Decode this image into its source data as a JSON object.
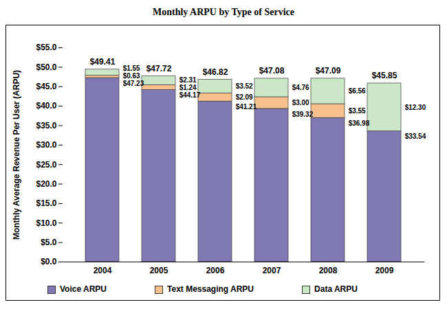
{
  "chart_data": {
    "type": "bar",
    "title": "Monthly ARPU by Type of Service",
    "y_label": "Monthly Average Revenue Per User (ARPU)",
    "categories": [
      "2004",
      "2005",
      "2006",
      "2007",
      "2008",
      "2009"
    ],
    "series": [
      {
        "name": "Voice ARPU",
        "color": "#8079b3",
        "values": [
          47.23,
          44.17,
          41.21,
          39.32,
          36.98,
          33.54
        ],
        "value_labels": [
          "$47.23",
          "$44.17",
          "$41.21",
          "$39.32",
          "$36.98",
          "$33.54"
        ]
      },
      {
        "name": "Text Messaging ARPU",
        "color": "#f7c18d",
        "values": [
          0.63,
          1.24,
          2.09,
          3.0,
          3.55,
          null
        ],
        "value_labels": [
          "$0.63",
          "$1.24",
          "$2.09",
          "$3.00",
          "$3.55",
          null
        ]
      },
      {
        "name": "Data ARPU",
        "color": "#cbe7c7",
        "values": [
          1.55,
          2.31,
          3.52,
          4.76,
          6.56,
          12.3
        ],
        "value_labels": [
          "$1.55",
          "$2.31",
          "$3.52",
          "$4.76",
          "$6.56",
          "$12.30"
        ]
      }
    ],
    "totals": [
      49.41,
      47.72,
      46.82,
      47.08,
      47.09,
      45.85
    ],
    "total_labels": [
      "$49.41",
      "$47.72",
      "$46.82",
      "$47.08",
      "$47.09",
      "$45.85"
    ],
    "ylim": [
      0,
      55
    ],
    "yticks": [
      {
        "value": 0,
        "label": "$0.0"
      },
      {
        "value": 5,
        "label": "$5.0"
      },
      {
        "value": 10,
        "label": "$10.0"
      },
      {
        "value": 15,
        "label": "$15.0"
      },
      {
        "value": 20,
        "label": "$20.0"
      },
      {
        "value": 25,
        "label": "$25.0"
      },
      {
        "value": 30,
        "label": "$30.0"
      },
      {
        "value": 35,
        "label": "$35.0"
      },
      {
        "value": 40,
        "label": "$40.0"
      },
      {
        "value": 45,
        "label": "$45.0"
      },
      {
        "value": 50,
        "label": "$50.0"
      },
      {
        "value": 55,
        "label": "$55.0"
      }
    ],
    "stacked": true,
    "data_labels": true,
    "legend": "bottom",
    "grid": false
  }
}
